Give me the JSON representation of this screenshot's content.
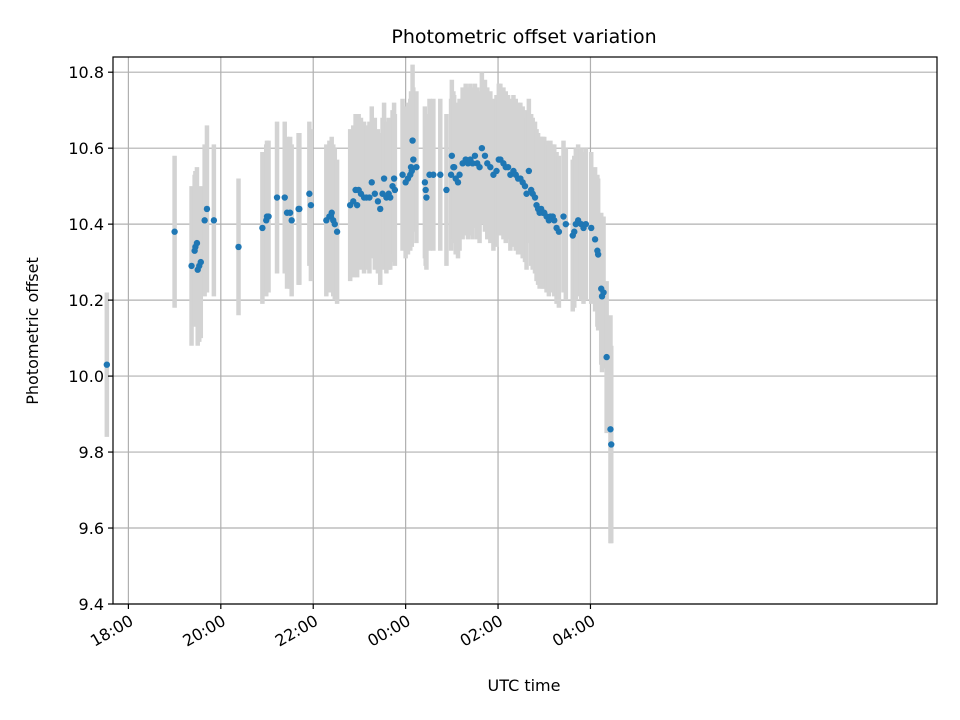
{
  "chart_data": {
    "type": "scatter",
    "title": "Photometric offset variation",
    "xlabel": "UTC time",
    "ylabel": "Photometric offset",
    "xlim": [
      -380,
      690
    ],
    "ylim": [
      9.4,
      10.84
    ],
    "grid": true,
    "x_ticks": [
      {
        "t": -360,
        "label": "18:00"
      },
      {
        "t": -240,
        "label": "20:00"
      },
      {
        "t": -120,
        "label": "22:00"
      },
      {
        "t": 0,
        "label": "00:00"
      },
      {
        "t": 120,
        "label": "02:00"
      },
      {
        "t": 240,
        "label": "04:00"
      }
    ],
    "y_ticks": [
      9.4,
      9.6,
      9.8,
      10.0,
      10.2,
      10.4,
      10.6,
      10.8
    ],
    "y_tick_labels": [
      "9.4",
      "9.6",
      "9.8",
      "10.0",
      "10.2",
      "10.4",
      "10.6",
      "10.8"
    ],
    "colors": {
      "points": "#1f77b4",
      "errorbars": "#d3d3d3",
      "grid": "#b0b0b0",
      "axes": "#000000"
    },
    "x_unit": "minutes relative to 00:00 UTC",
    "series": [
      {
        "name": "Photometric offset",
        "points": [
          [
            -388,
            10.03,
            0.19
          ],
          [
            -300,
            10.38,
            0.2
          ],
          [
            -278,
            10.29,
            0.21
          ],
          [
            -274,
            10.33,
            0.2
          ],
          [
            -273,
            10.34,
            0.2
          ],
          [
            -271,
            10.35,
            0.2
          ],
          [
            -270,
            10.28,
            0.2
          ],
          [
            -268,
            10.29,
            0.2
          ],
          [
            -266,
            10.3,
            0.2
          ],
          [
            -261,
            10.41,
            0.2
          ],
          [
            -258,
            10.44,
            0.22
          ],
          [
            -249,
            10.41,
            0.2
          ],
          [
            -217,
            10.34,
            0.18
          ],
          [
            -186,
            10.39,
            0.2
          ],
          [
            -181,
            10.41,
            0.2
          ],
          [
            -180,
            10.42,
            0.2
          ],
          [
            -178,
            10.42,
            0.2
          ],
          [
            -167,
            10.47,
            0.2
          ],
          [
            -157,
            10.47,
            0.2
          ],
          [
            -154,
            10.43,
            0.2
          ],
          [
            -150,
            10.43,
            0.2
          ],
          [
            -148,
            10.41,
            0.2
          ],
          [
            -139,
            10.44,
            0.2
          ],
          [
            -138,
            10.44,
            0.2
          ],
          [
            -125,
            10.48,
            0.19
          ],
          [
            -123,
            10.45,
            0.2
          ],
          [
            -103,
            10.41,
            0.2
          ],
          [
            -99,
            10.42,
            0.2
          ],
          [
            -97,
            10.42,
            0.19
          ],
          [
            -96,
            10.43,
            0.2
          ],
          [
            -94,
            10.41,
            0.2
          ],
          [
            -92,
            10.4,
            0.2
          ],
          [
            -89,
            10.38,
            0.19
          ],
          [
            -72,
            10.45,
            0.2
          ],
          [
            -68,
            10.46,
            0.2
          ],
          [
            -65,
            10.49,
            0.2
          ],
          [
            -63,
            10.45,
            0.19
          ],
          [
            -61,
            10.49,
            0.2
          ],
          [
            -58,
            10.48,
            0.2
          ],
          [
            -54,
            10.47,
            0.2
          ],
          [
            -51,
            10.47,
            0.19
          ],
          [
            -47,
            10.47,
            0.2
          ],
          [
            -44,
            10.51,
            0.2
          ],
          [
            -40,
            10.48,
            0.2
          ],
          [
            -36,
            10.46,
            0.19
          ],
          [
            -33,
            10.44,
            0.2
          ],
          [
            -30,
            10.48,
            0.2
          ],
          [
            -28,
            10.52,
            0.2
          ],
          [
            -25,
            10.47,
            0.2
          ],
          [
            -22,
            10.48,
            0.2
          ],
          [
            -20,
            10.47,
            0.19
          ],
          [
            -17,
            10.5,
            0.2
          ],
          [
            -15,
            10.52,
            0.2
          ],
          [
            -14,
            10.49,
            0.2
          ],
          [
            -4,
            10.53,
            0.2
          ],
          [
            0,
            10.51,
            0.2
          ],
          [
            3,
            10.52,
            0.2
          ],
          [
            6,
            10.53,
            0.2
          ],
          [
            7,
            10.55,
            0.2
          ],
          [
            8,
            10.54,
            0.2
          ],
          [
            9,
            10.62,
            0.2
          ],
          [
            10,
            10.57,
            0.19
          ],
          [
            14,
            10.55,
            0.2
          ],
          [
            25,
            10.51,
            0.2
          ],
          [
            26,
            10.49,
            0.2
          ],
          [
            27,
            10.47,
            0.19
          ],
          [
            31,
            10.53,
            0.2
          ],
          [
            36,
            10.53,
            0.2
          ],
          [
            45,
            10.53,
            0.2
          ],
          [
            53,
            10.49,
            0.2
          ],
          [
            59,
            10.53,
            0.2
          ],
          [
            60,
            10.58,
            0.2
          ],
          [
            62,
            10.55,
            0.2
          ],
          [
            63,
            10.55,
            0.19
          ],
          [
            65,
            10.52,
            0.2
          ],
          [
            68,
            10.51,
            0.2
          ],
          [
            70,
            10.53,
            0.2
          ],
          [
            74,
            10.56,
            0.2
          ],
          [
            78,
            10.57,
            0.2
          ],
          [
            81,
            10.56,
            0.2
          ],
          [
            84,
            10.57,
            0.2
          ],
          [
            87,
            10.56,
            0.2
          ],
          [
            90,
            10.58,
            0.19
          ],
          [
            93,
            10.56,
            0.2
          ],
          [
            96,
            10.55,
            0.2
          ],
          [
            99,
            10.6,
            0.2
          ],
          [
            103,
            10.58,
            0.2
          ],
          [
            106,
            10.56,
            0.2
          ],
          [
            110,
            10.55,
            0.2
          ],
          [
            114,
            10.53,
            0.2
          ],
          [
            118,
            10.54,
            0.2
          ],
          [
            121,
            10.57,
            0.2
          ],
          [
            123,
            10.57,
            0.2
          ],
          [
            127,
            10.56,
            0.2
          ],
          [
            130,
            10.55,
            0.2
          ],
          [
            133,
            10.55,
            0.19
          ],
          [
            136,
            10.53,
            0.2
          ],
          [
            140,
            10.54,
            0.2
          ],
          [
            143,
            10.53,
            0.2
          ],
          [
            146,
            10.52,
            0.2
          ],
          [
            149,
            10.52,
            0.2
          ],
          [
            152,
            10.51,
            0.2
          ],
          [
            155,
            10.5,
            0.2
          ],
          [
            157,
            10.48,
            0.2
          ],
          [
            160,
            10.54,
            0.19
          ],
          [
            163,
            10.49,
            0.2
          ],
          [
            165,
            10.48,
            0.2
          ],
          [
            168,
            10.47,
            0.2
          ],
          [
            170,
            10.45,
            0.2
          ],
          [
            172,
            10.44,
            0.2
          ],
          [
            174,
            10.43,
            0.2
          ],
          [
            176,
            10.44,
            0.19
          ],
          [
            178,
            10.43,
            0.2
          ],
          [
            180,
            10.43,
            0.2
          ],
          [
            183,
            10.42,
            0.2
          ],
          [
            186,
            10.41,
            0.2
          ],
          [
            188,
            10.42,
            0.2
          ],
          [
            191,
            10.42,
            0.19
          ],
          [
            193,
            10.41,
            0.2
          ],
          [
            196,
            10.39,
            0.2
          ],
          [
            199,
            10.38,
            0.2
          ],
          [
            205,
            10.42,
            0.2
          ],
          [
            208,
            10.4,
            0.2
          ],
          [
            217,
            10.37,
            0.2
          ],
          [
            219,
            10.38,
            0.2
          ],
          [
            221,
            10.4,
            0.2
          ],
          [
            224,
            10.41,
            0.2
          ],
          [
            228,
            10.4,
            0.2
          ],
          [
            231,
            10.39,
            0.2
          ],
          [
            234,
            10.4,
            0.2
          ],
          [
            241,
            10.39,
            0.2
          ],
          [
            246,
            10.36,
            0.19
          ],
          [
            249,
            10.33,
            0.2
          ],
          [
            250,
            10.32,
            0.2
          ],
          [
            254,
            10.23,
            0.2
          ],
          [
            255,
            10.21,
            0.2
          ],
          [
            257,
            10.22,
            0.2
          ],
          [
            261,
            10.05,
            0.2
          ],
          [
            266,
            9.86,
            0.3
          ],
          [
            267,
            9.82,
            0.26
          ]
        ]
      }
    ]
  }
}
